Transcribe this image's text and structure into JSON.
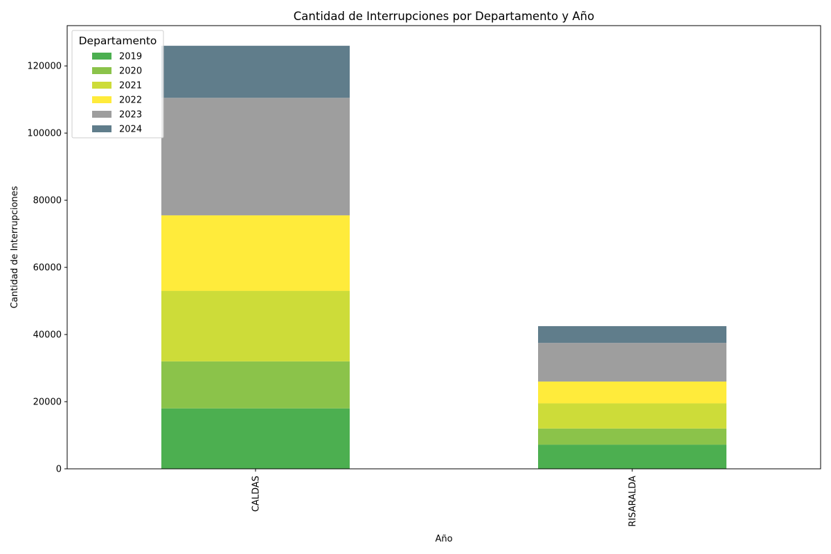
{
  "chart_data": {
    "type": "bar",
    "stacked": true,
    "title": "Cantidad de Interrupciones por Departamento y Año",
    "xlabel": "Año",
    "ylabel": "Cantidad de Interrupciones",
    "ylim": [
      0,
      132000
    ],
    "yticks": [
      0,
      20000,
      40000,
      60000,
      80000,
      100000,
      120000
    ],
    "categories": [
      "CALDAS",
      "RISARALDA"
    ],
    "legend_title": "Departamento",
    "legend_position": "top-left",
    "grid": false,
    "series": [
      {
        "name": "2019",
        "color": "#4caf50",
        "values": [
          18000,
          7200
        ]
      },
      {
        "name": "2020",
        "color": "#8bc34a",
        "values": [
          14000,
          4800
        ]
      },
      {
        "name": "2021",
        "color": "#cddc39",
        "values": [
          21000,
          7500
        ]
      },
      {
        "name": "2022",
        "color": "#ffeb3b",
        "values": [
          22500,
          6500
        ]
      },
      {
        "name": "2023",
        "color": "#9e9e9e",
        "values": [
          35000,
          11500
        ]
      },
      {
        "name": "2024",
        "color": "#607d8b",
        "values": [
          15500,
          5000
        ]
      }
    ]
  }
}
